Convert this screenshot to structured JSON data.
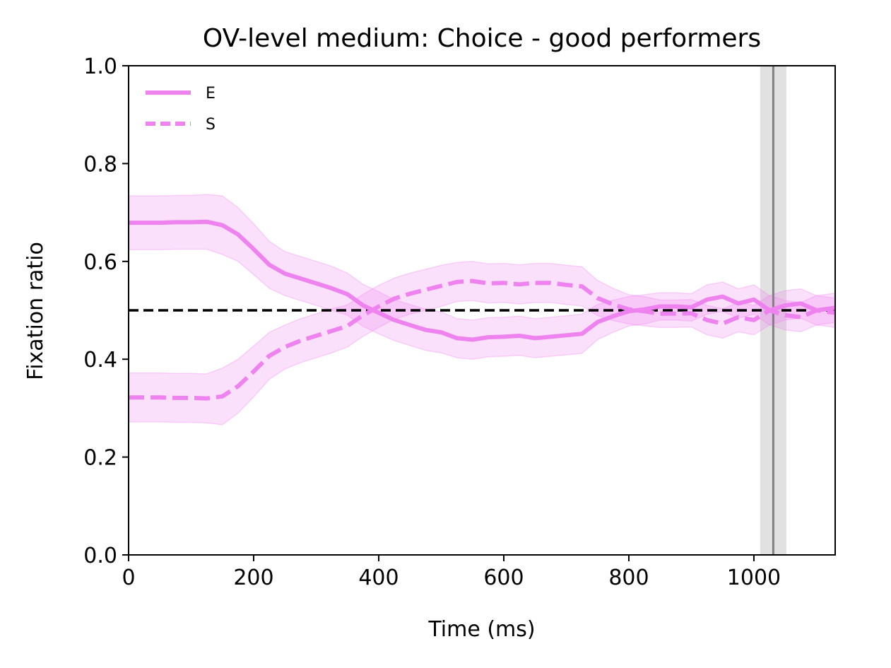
{
  "chart_data": {
    "type": "line",
    "title": "OV-level medium: Choice - good performers",
    "xlabel": "Time (ms)",
    "ylabel": "Fixation ratio",
    "xlim": [
      0,
      1130
    ],
    "ylim": [
      0.0,
      1.0
    ],
    "x_ticks": [
      0,
      200,
      400,
      600,
      800,
      1000
    ],
    "x_tick_labels": [
      "0",
      "200",
      "400",
      "600",
      "800",
      "1000"
    ],
    "y_ticks": [
      0.0,
      0.2,
      0.4,
      0.6,
      0.8,
      1.0
    ],
    "y_tick_labels": [
      "0.0",
      "0.2",
      "0.4",
      "0.6",
      "0.8",
      "1.0"
    ],
    "grid": false,
    "legend_position": "top-left",
    "reference_line": {
      "y": 0.5,
      "style": "dashed",
      "color": "#000000"
    },
    "vertical_marker": {
      "x": 1031,
      "band": [
        1010,
        1052
      ],
      "line_color": "#808080",
      "band_color": "#e1e1e1"
    },
    "series_color": "#ee82ee",
    "x": [
      0,
      25,
      50,
      75,
      100,
      125,
      150,
      175,
      200,
      225,
      250,
      275,
      300,
      325,
      350,
      375,
      400,
      425,
      450,
      475,
      500,
      525,
      550,
      575,
      600,
      625,
      650,
      675,
      700,
      725,
      750,
      775,
      800,
      825,
      850,
      875,
      900,
      925,
      950,
      975,
      1000,
      1025,
      1050,
      1075,
      1100,
      1130
    ],
    "series": [
      {
        "name": "E",
        "style": "solid",
        "values": [
          0.679,
          0.679,
          0.679,
          0.68,
          0.68,
          0.681,
          0.674,
          0.655,
          0.625,
          0.593,
          0.575,
          0.565,
          0.555,
          0.545,
          0.533,
          0.51,
          0.495,
          0.48,
          0.47,
          0.46,
          0.455,
          0.443,
          0.44,
          0.445,
          0.446,
          0.448,
          0.443,
          0.446,
          0.449,
          0.452,
          0.476,
          0.488,
          0.498,
          0.502,
          0.508,
          0.508,
          0.506,
          0.522,
          0.528,
          0.514,
          0.522,
          0.5,
          0.51,
          0.514,
          0.5,
          0.505
        ],
        "ci_halfwidth": [
          0.055,
          0.055,
          0.055,
          0.055,
          0.055,
          0.056,
          0.06,
          0.055,
          0.052,
          0.048,
          0.045,
          0.045,
          0.045,
          0.045,
          0.043,
          0.043,
          0.043,
          0.042,
          0.042,
          0.042,
          0.042,
          0.04,
          0.04,
          0.04,
          0.04,
          0.04,
          0.04,
          0.04,
          0.04,
          0.04,
          0.036,
          0.033,
          0.03,
          0.03,
          0.028,
          0.028,
          0.028,
          0.03,
          0.03,
          0.03,
          0.03,
          0.03,
          0.03,
          0.03,
          0.03,
          0.03
        ]
      },
      {
        "name": "S",
        "style": "dashed",
        "values": [
          0.322,
          0.322,
          0.322,
          0.321,
          0.321,
          0.32,
          0.324,
          0.345,
          0.375,
          0.407,
          0.425,
          0.438,
          0.448,
          0.458,
          0.468,
          0.49,
          0.508,
          0.524,
          0.534,
          0.542,
          0.55,
          0.558,
          0.56,
          0.555,
          0.556,
          0.553,
          0.556,
          0.556,
          0.552,
          0.549,
          0.525,
          0.512,
          0.502,
          0.498,
          0.493,
          0.493,
          0.494,
          0.48,
          0.473,
          0.486,
          0.48,
          0.5,
          0.49,
          0.486,
          0.5,
          0.495
        ],
        "ci_halfwidth": [
          0.05,
          0.05,
          0.05,
          0.05,
          0.05,
          0.05,
          0.058,
          0.055,
          0.052,
          0.048,
          0.045,
          0.045,
          0.045,
          0.045,
          0.043,
          0.043,
          0.043,
          0.042,
          0.042,
          0.042,
          0.042,
          0.04,
          0.04,
          0.04,
          0.04,
          0.04,
          0.04,
          0.04,
          0.04,
          0.04,
          0.036,
          0.033,
          0.03,
          0.03,
          0.028,
          0.028,
          0.028,
          0.03,
          0.03,
          0.03,
          0.03,
          0.03,
          0.03,
          0.03,
          0.03,
          0.03
        ]
      }
    ]
  }
}
